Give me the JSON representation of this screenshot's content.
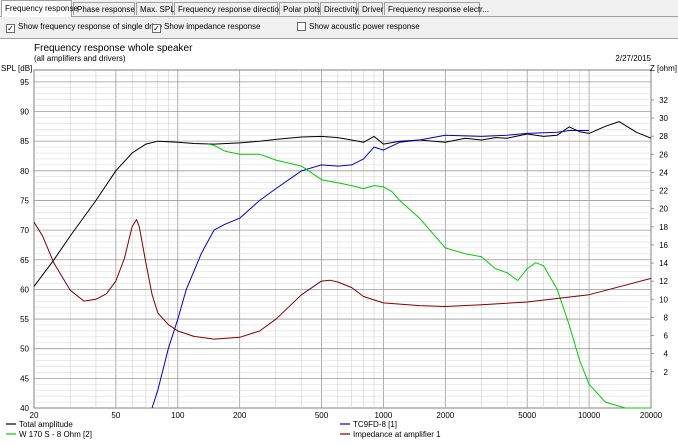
{
  "tabs": [
    {
      "label": "Frequency response",
      "active": true
    },
    {
      "label": "Phase response",
      "active": false
    },
    {
      "label": "Max. SPL",
      "active": false
    },
    {
      "label": "Frequency response directions",
      "active": false
    },
    {
      "label": "Polar plots",
      "active": false
    },
    {
      "label": "Directivity",
      "active": false
    },
    {
      "label": "Driver",
      "active": false
    },
    {
      "label": "Frequency response electr...",
      "active": false
    }
  ],
  "options": [
    {
      "label": "Show frequency response of single drive",
      "checked": true
    },
    {
      "label": "Show impedance response",
      "checked": true
    },
    {
      "label": "Show acoustic power response",
      "checked": false
    }
  ],
  "chart_data": {
    "type": "line",
    "title": "Frequency response whole speaker",
    "subtitle": "(all amplifiers and drivers)",
    "date": "2/27/2015",
    "ylabel": "SPL [dB]",
    "y2label": "Z [ohm]",
    "xscale": "log",
    "xlim": [
      20,
      20000
    ],
    "ylim": [
      40,
      97
    ],
    "y2lim": [
      -2,
      35.3
    ],
    "grid": true,
    "legend_position": "bottom",
    "x_ticks": [
      20,
      50,
      100,
      200,
      500,
      1000,
      2000,
      5000,
      10000,
      20000
    ],
    "y_ticks": [
      40,
      45,
      50,
      55,
      60,
      65,
      70,
      75,
      80,
      85,
      90,
      95
    ],
    "y2_ticks": [
      2,
      4,
      6,
      8,
      10,
      12,
      14,
      16,
      18,
      20,
      22,
      24,
      26,
      28,
      30,
      32
    ],
    "series": [
      {
        "name": "Total amplitude",
        "color": "#000000",
        "axis": "left",
        "x": [
          20,
          25,
          30,
          40,
          50,
          60,
          70,
          80,
          100,
          120,
          150,
          200,
          250,
          300,
          400,
          500,
          600,
          700,
          800,
          900,
          1000,
          1200,
          1500,
          2000,
          2500,
          3000,
          3500,
          4000,
          5000,
          6000,
          7000,
          8000,
          9000,
          10000,
          12000,
          14000,
          17000,
          20000
        ],
        "y": [
          60.5,
          65,
          69,
          75,
          80,
          83,
          84.5,
          85,
          84.8,
          84.6,
          84.5,
          84.7,
          85,
          85.3,
          85.7,
          85.8,
          85.6,
          85.2,
          84.8,
          85.8,
          84.5,
          85,
          85.2,
          84.8,
          85.5,
          85.2,
          85.6,
          85.5,
          86.2,
          85.8,
          86,
          87.4,
          86.6,
          86.3,
          87.5,
          88.3,
          86.5,
          85.5
        ]
      },
      {
        "name": "TC9FD-8 [1]",
        "color": "#0000cc",
        "axis": "left",
        "x": [
          75,
          80,
          90,
          100,
          110,
          130,
          150,
          170,
          200,
          250,
          300,
          400,
          500,
          600,
          700,
          800,
          900,
          1000,
          1200,
          1500,
          2000,
          3000,
          4000,
          5000,
          7000,
          8000,
          10000
        ],
        "y": [
          40,
          43,
          50,
          55,
          60,
          66,
          70,
          71,
          72,
          75,
          77,
          80,
          81,
          80.8,
          81,
          82,
          84,
          83.5,
          84.8,
          85.2,
          86,
          85.8,
          86,
          86.3,
          86.5,
          86.8,
          86.8
        ]
      },
      {
        "name": "W 170 S - 8 Ohm [2]",
        "color": "#00cc00",
        "axis": "left",
        "x": [
          140,
          150,
          160,
          170,
          200,
          250,
          300,
          400,
          500,
          600,
          700,
          800,
          900,
          1000,
          1100,
          1200,
          1500,
          2000,
          2500,
          3000,
          3500,
          4000,
          4500,
          5000,
          5500,
          6000,
          7000,
          8000,
          9000,
          10000,
          12000,
          15000,
          20000
        ],
        "y": [
          84.5,
          84.3,
          83.8,
          83.3,
          82.8,
          82.8,
          81.8,
          80.8,
          78.5,
          78,
          77.5,
          77,
          77.5,
          77.3,
          76.5,
          75,
          72,
          67,
          66,
          65.5,
          63.5,
          62.8,
          61.5,
          63.5,
          64.5,
          64,
          60,
          54,
          48,
          44,
          41,
          40,
          40
        ]
      },
      {
        "name": "Impedance at amplifier 1",
        "color": "#800000",
        "axis": "right",
        "x": [
          20,
          22,
          25,
          30,
          35,
          40,
          45,
          50,
          55,
          60,
          63,
          65,
          70,
          75,
          80,
          90,
          100,
          120,
          150,
          200,
          250,
          300,
          400,
          500,
          550,
          600,
          700,
          800,
          1000,
          1500,
          2000,
          3000,
          5000,
          10000,
          20000
        ],
        "y": [
          18.5,
          17,
          14,
          11,
          9.8,
          10,
          10.6,
          12,
          14.5,
          18,
          18.8,
          18,
          14,
          10.5,
          8.5,
          7.2,
          6.5,
          5.9,
          5.6,
          5.8,
          6.5,
          7.8,
          10.5,
          12,
          12.1,
          11.9,
          11.3,
          10.3,
          9.6,
          9.3,
          9.2,
          9.4,
          9.7,
          10.5,
          12.3
        ]
      }
    ]
  }
}
